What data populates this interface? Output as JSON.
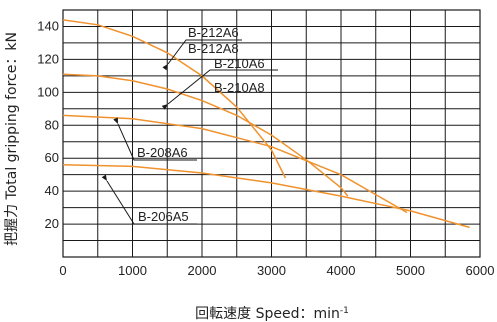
{
  "chart_data": {
    "type": "line",
    "xlabel": "回転速度 Speed：min",
    "xlabel_sup": "-1",
    "ylabel": "把握力 Total gripping force：kN",
    "xlim": [
      0,
      6000
    ],
    "ylim": [
      0,
      150
    ],
    "x_ticks": [
      0,
      1000,
      2000,
      3000,
      4000,
      5000,
      6000
    ],
    "y_ticks": [
      20,
      40,
      60,
      80,
      100,
      120,
      140
    ],
    "grid": true,
    "series_color": "#f0922d",
    "series": [
      {
        "label_lines": [
          "B-212A6",
          "B-212A8"
        ],
        "x": [
          0,
          500,
          1000,
          1500,
          2000,
          2500,
          3000,
          3200
        ],
        "y": [
          144,
          141,
          134,
          124,
          110,
          91,
          65,
          48
        ]
      },
      {
        "label_lines": [
          "B-210A6",
          "B-210A8"
        ],
        "x": [
          0,
          500,
          1000,
          1500,
          2000,
          2500,
          3000,
          3500,
          4000,
          4100
        ],
        "y": [
          111,
          110,
          107,
          102,
          95,
          86,
          74,
          59,
          42,
          37
        ]
      },
      {
        "x": [
          0,
          1000,
          2000,
          3000,
          4000,
          4950
        ],
        "y": [
          86,
          84,
          78,
          67,
          50,
          27
        ]
      },
      {
        "label_lines": [
          "B-208A6"
        ]
      },
      {
        "x": [
          0,
          1000,
          2000,
          3000,
          4000,
          5000,
          5850
        ],
        "y": [
          56,
          55,
          51,
          45,
          37,
          28,
          18
        ]
      },
      {
        "label_lines": [
          "B-206A5"
        ]
      }
    ]
  }
}
